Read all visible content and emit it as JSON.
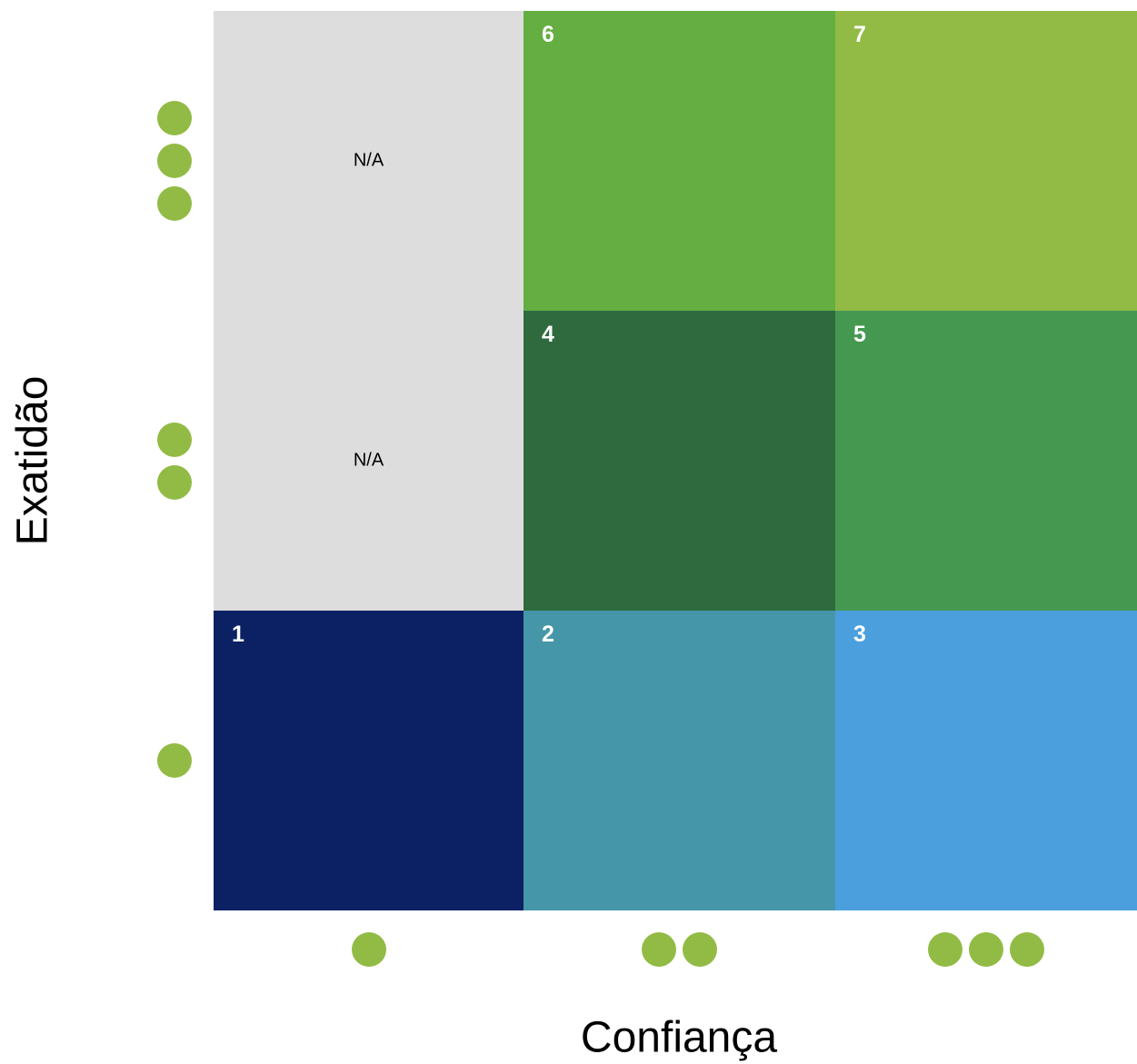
{
  "axes": {
    "y_title": "Exatidão",
    "x_title": "Confiança"
  },
  "dot_color": "#92bb45",
  "rows": [
    3,
    2,
    1
  ],
  "cols": [
    1,
    2,
    3
  ],
  "cells": [
    {
      "row": 0,
      "col": 0,
      "label": "N/A",
      "kind": "na",
      "color": "#dddddd"
    },
    {
      "row": 0,
      "col": 1,
      "label": "6",
      "kind": "num",
      "color": "#64ae42"
    },
    {
      "row": 0,
      "col": 2,
      "label": "7",
      "kind": "num",
      "color": "#92bb45"
    },
    {
      "row": 1,
      "col": 0,
      "label": "N/A",
      "kind": "na",
      "color": "#dddddd"
    },
    {
      "row": 1,
      "col": 1,
      "label": "4",
      "kind": "num",
      "color": "#2e6a3e"
    },
    {
      "row": 1,
      "col": 2,
      "label": "5",
      "kind": "num",
      "color": "#45984f"
    },
    {
      "row": 2,
      "col": 0,
      "label": "1",
      "kind": "num",
      "color": "#0b2163"
    },
    {
      "row": 2,
      "col": 1,
      "label": "2",
      "kind": "num",
      "color": "#4596a8"
    },
    {
      "row": 2,
      "col": 2,
      "label": "3",
      "kind": "num",
      "color": "#4a9fdc"
    }
  ]
}
